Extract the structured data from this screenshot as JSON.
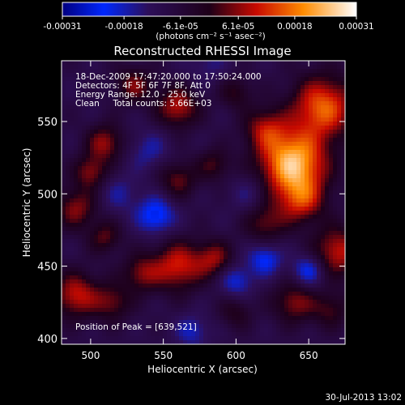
{
  "chart_data": {
    "type": "heatmap",
    "title": "Reconstructed RHESSI Image",
    "xlabel": "Heliocentric X (arcsec)",
    "ylabel": "Heliocentric Y (arcsec)",
    "xlim": [
      480,
      675
    ],
    "ylim": [
      396,
      592
    ],
    "x_ticks": [
      500,
      550,
      600,
      650
    ],
    "y_ticks": [
      400,
      450,
      500,
      550
    ],
    "colorbar": {
      "ticks": [
        "-0.00031",
        "-0.00018",
        "-6.1e-05",
        "6.1e-05",
        "0.00018",
        "0.00031"
      ],
      "tick_values": [
        -0.00031,
        -0.00018,
        -6.1e-05,
        6.1e-05,
        0.00018,
        0.00031
      ],
      "range": [
        -0.00031,
        0.00031
      ],
      "units": "(photons cm⁻² s⁻¹ asec⁻²)",
      "colormap": "rhessi-blue-red-yellow"
    },
    "annotations": [
      "18-Dec-2009 17:47:20.000 to 17:50:24.000",
      "Detectors: 4F 5F 6F 7F 8F, Att 0",
      "Energy Range: 12.0 - 25.0 keV",
      "Clean     Total counts: 5.66E+03"
    ],
    "peak_label": "Position of Peak = [639,521]",
    "peak": [
      639,
      521
    ],
    "grid": false,
    "blobs": [
      {
        "x": 639,
        "y": 521,
        "v": 0.00031,
        "r": 16
      },
      {
        "x": 660,
        "y": 560,
        "v": 0.00022,
        "r": 15
      },
      {
        "x": 620,
        "y": 545,
        "v": 0.00012,
        "r": 10
      },
      {
        "x": 645,
        "y": 495,
        "v": 0.00014,
        "r": 11
      },
      {
        "x": 670,
        "y": 460,
        "v": 0.00016,
        "r": 12
      },
      {
        "x": 620,
        "y": 480,
        "v": 0.0001,
        "r": 10
      },
      {
        "x": 560,
        "y": 560,
        "v": 0.00015,
        "r": 10
      },
      {
        "x": 530,
        "y": 575,
        "v": 0.00011,
        "r": 9
      },
      {
        "x": 510,
        "y": 535,
        "v": 0.00013,
        "r": 9
      },
      {
        "x": 500,
        "y": 515,
        "v": 0.00012,
        "r": 8
      },
      {
        "x": 585,
        "y": 520,
        "v": 8e-05,
        "r": 8
      },
      {
        "x": 600,
        "y": 570,
        "v": 7e-05,
        "r": 8
      },
      {
        "x": 560,
        "y": 510,
        "v": 0.0001,
        "r": 9
      },
      {
        "x": 490,
        "y": 490,
        "v": 0.00012,
        "r": 10
      },
      {
        "x": 510,
        "y": 470,
        "v": 9e-05,
        "r": 8
      },
      {
        "x": 560,
        "y": 450,
        "v": 0.00017,
        "r": 12
      },
      {
        "x": 585,
        "y": 455,
        "v": 0.00012,
        "r": 9
      },
      {
        "x": 535,
        "y": 445,
        "v": 0.00011,
        "r": 9
      },
      {
        "x": 490,
        "y": 430,
        "v": 0.00016,
        "r": 11
      },
      {
        "x": 515,
        "y": 425,
        "v": 0.0001,
        "r": 9
      },
      {
        "x": 640,
        "y": 425,
        "v": 0.00012,
        "r": 10
      },
      {
        "x": 665,
        "y": 420,
        "v": 8e-05,
        "r": 9
      },
      {
        "x": 600,
        "y": 418,
        "v": 6e-05,
        "r": 8
      },
      {
        "x": 545,
        "y": 485,
        "v": -0.00014,
        "r": 9
      },
      {
        "x": 600,
        "y": 440,
        "v": -0.0001,
        "r": 8
      },
      {
        "x": 620,
        "y": 455,
        "v": -0.00012,
        "r": 8
      },
      {
        "x": 650,
        "y": 447,
        "v": -0.00012,
        "r": 8
      },
      {
        "x": 540,
        "y": 530,
        "v": -6e-05,
        "r": 10
      },
      {
        "x": 610,
        "y": 500,
        "v": -5e-05,
        "r": 10
      },
      {
        "x": 570,
        "y": 405,
        "v": -8e-05,
        "r": 8
      },
      {
        "x": 520,
        "y": 500,
        "v": -5e-05,
        "r": 10
      },
      {
        "x": 580,
        "y": 590,
        "v": -4e-05,
        "r": 10
      }
    ]
  },
  "footer": {
    "timestamp": "30-Jul-2013 13:02"
  }
}
